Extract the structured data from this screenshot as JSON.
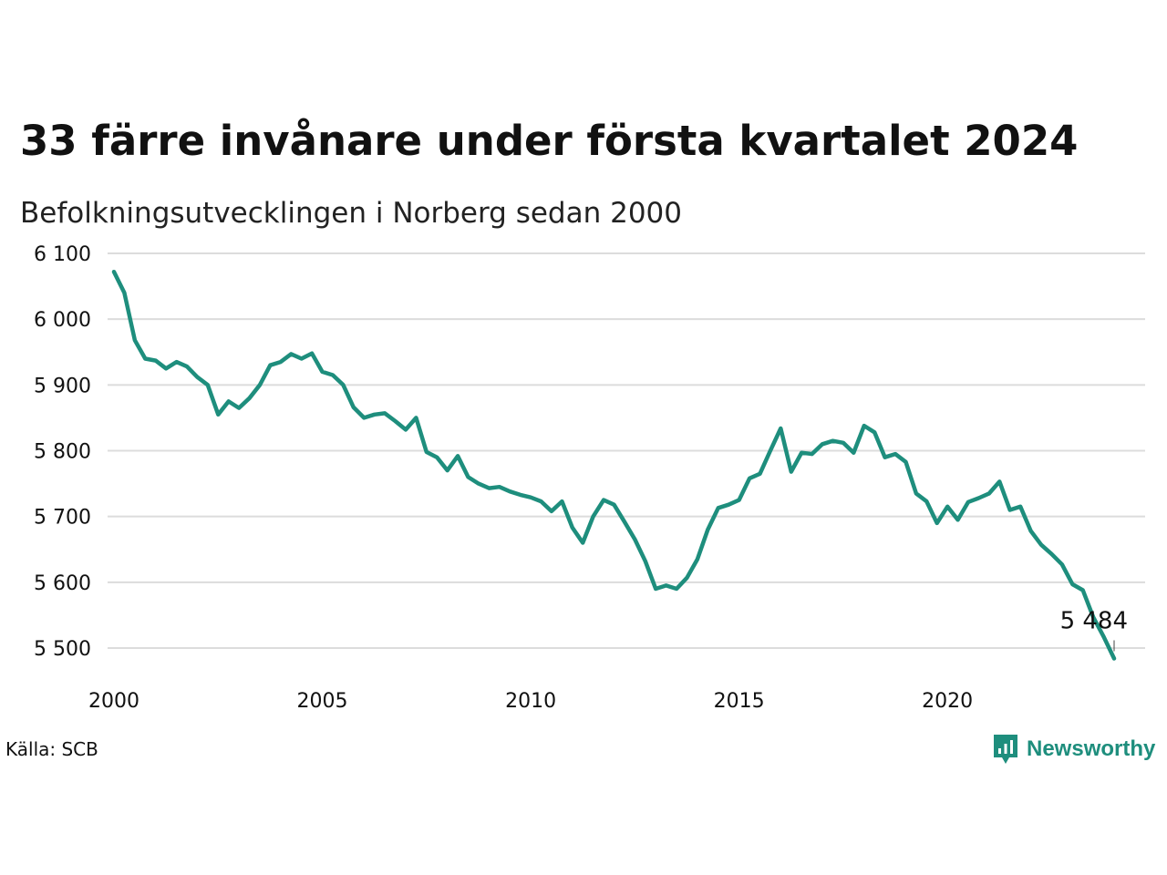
{
  "chart_data": {
    "type": "line",
    "title": "33 färre invånare under första kvartalet 2024",
    "subtitle": "Befolkningsutvecklingen i Norberg sedan 2000",
    "source": "Källa: SCB",
    "brand": "Newsworthy",
    "color": "#1e8e7d",
    "grid": true,
    "xlim": [
      2000,
      2024
    ],
    "ylim": [
      5450,
      6110
    ],
    "x_ticks": [
      2000,
      2005,
      2010,
      2015,
      2020
    ],
    "x_tick_labels": [
      "2000",
      "2005",
      "2010",
      "2015",
      "2020"
    ],
    "y_ticks": [
      5500,
      5600,
      5700,
      5800,
      5900,
      6000,
      6100
    ],
    "y_tick_labels": [
      "5 500",
      "5 600",
      "5 700",
      "5 800",
      "5 900",
      "6 000",
      "6 100"
    ],
    "x": [
      2000.0,
      2000.25,
      2000.5,
      2000.75,
      2001.0,
      2001.25,
      2001.5,
      2001.75,
      2002.0,
      2002.25,
      2002.5,
      2002.75,
      2003.0,
      2003.25,
      2003.5,
      2003.75,
      2004.0,
      2004.25,
      2004.5,
      2004.75,
      2005.0,
      2005.25,
      2005.5,
      2005.75,
      2006.0,
      2006.25,
      2006.5,
      2006.75,
      2007.0,
      2007.25,
      2007.5,
      2007.75,
      2008.0,
      2008.25,
      2008.5,
      2008.75,
      2009.0,
      2009.25,
      2009.5,
      2009.75,
      2010.0,
      2010.25,
      2010.5,
      2010.75,
      2011.0,
      2011.25,
      2011.5,
      2011.75,
      2012.0,
      2012.25,
      2012.5,
      2012.75,
      2013.0,
      2013.25,
      2013.5,
      2013.75,
      2014.0,
      2014.25,
      2014.5,
      2014.75,
      2015.0,
      2015.25,
      2015.5,
      2015.75,
      2016.0,
      2016.25,
      2016.5,
      2016.75,
      2017.0,
      2017.25,
      2017.5,
      2017.75,
      2018.0,
      2018.25,
      2018.5,
      2018.75,
      2019.0,
      2019.25,
      2019.5,
      2019.75,
      2020.0,
      2020.25,
      2020.5,
      2020.75,
      2021.0,
      2021.25,
      2021.5,
      2021.75,
      2022.0,
      2022.25,
      2022.5,
      2022.75,
      2023.0,
      2023.25,
      2023.5,
      2023.75,
      2024.0
    ],
    "values": [
      6072,
      6040,
      5968,
      5940,
      5937,
      5925,
      5935,
      5928,
      5912,
      5900,
      5855,
      5875,
      5865,
      5880,
      5900,
      5930,
      5935,
      5947,
      5940,
      5948,
      5920,
      5915,
      5900,
      5866,
      5850,
      5855,
      5857,
      5845,
      5832,
      5850,
      5798,
      5790,
      5770,
      5792,
      5760,
      5750,
      5743,
      5745,
      5738,
      5733,
      5729,
      5723,
      5708,
      5723,
      5683,
      5660,
      5700,
      5725,
      5718,
      5692,
      5665,
      5632,
      5590,
      5595,
      5590,
      5607,
      5635,
      5680,
      5713,
      5718,
      5725,
      5758,
      5765,
      5800,
      5834,
      5768,
      5797,
      5795,
      5810,
      5815,
      5812,
      5797,
      5838,
      5828,
      5790,
      5795,
      5783,
      5735,
      5723,
      5690,
      5715,
      5695,
      5722,
      5728,
      5735,
      5753,
      5710,
      5715,
      5678,
      5657,
      5643,
      5627,
      5597,
      5588,
      5547,
      5517,
      5484
    ],
    "annotation": {
      "label": "5 484",
      "x": 2024.0,
      "y": 5484
    }
  }
}
